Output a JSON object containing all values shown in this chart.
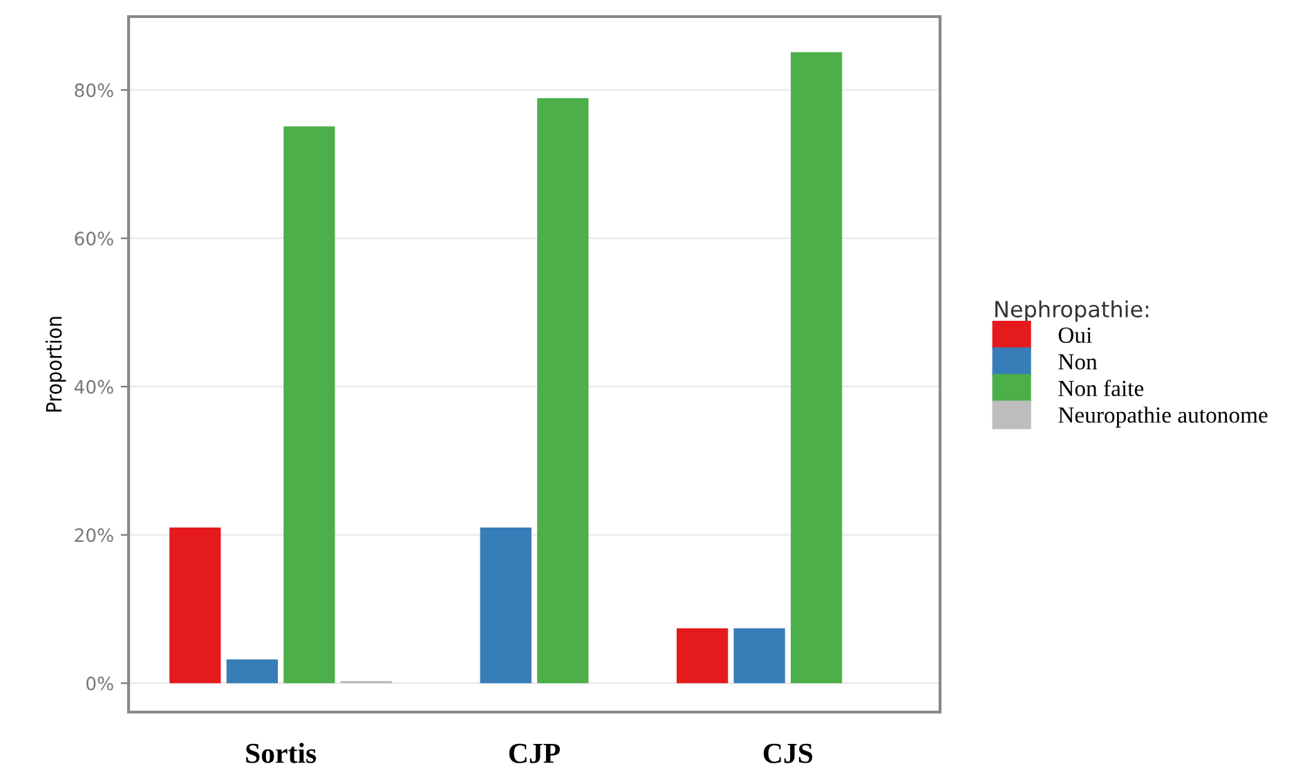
{
  "chart_data": {
    "type": "bar",
    "ylabel": "Proportion",
    "categories": [
      "Sortis",
      "CJP",
      "CJS"
    ],
    "grid": "y",
    "legend": "right",
    "legend_title": "Nephropathie:",
    "ylim": [
      -3.9,
      89.9
    ],
    "yticks": [
      {
        "value": 0,
        "label": "0%"
      },
      {
        "value": 20,
        "label": "20%"
      },
      {
        "value": 40,
        "label": "40%"
      },
      {
        "value": 60,
        "label": "60%"
      },
      {
        "value": 80,
        "label": "80%"
      }
    ],
    "series": [
      {
        "name": "Oui",
        "color": "#e41a1c",
        "values": [
          21.0,
          null,
          7.4
        ]
      },
      {
        "name": "Non",
        "color": "#377eb8",
        "values": [
          3.2,
          21.0,
          7.4
        ]
      },
      {
        "name": "Non faite",
        "color": "#4daf4a",
        "values": [
          75.1,
          78.9,
          85.1
        ]
      },
      {
        "name": "Neuropathie autonome",
        "color": "#bdbdbd",
        "values": [
          0.3,
          null,
          null
        ]
      }
    ]
  }
}
